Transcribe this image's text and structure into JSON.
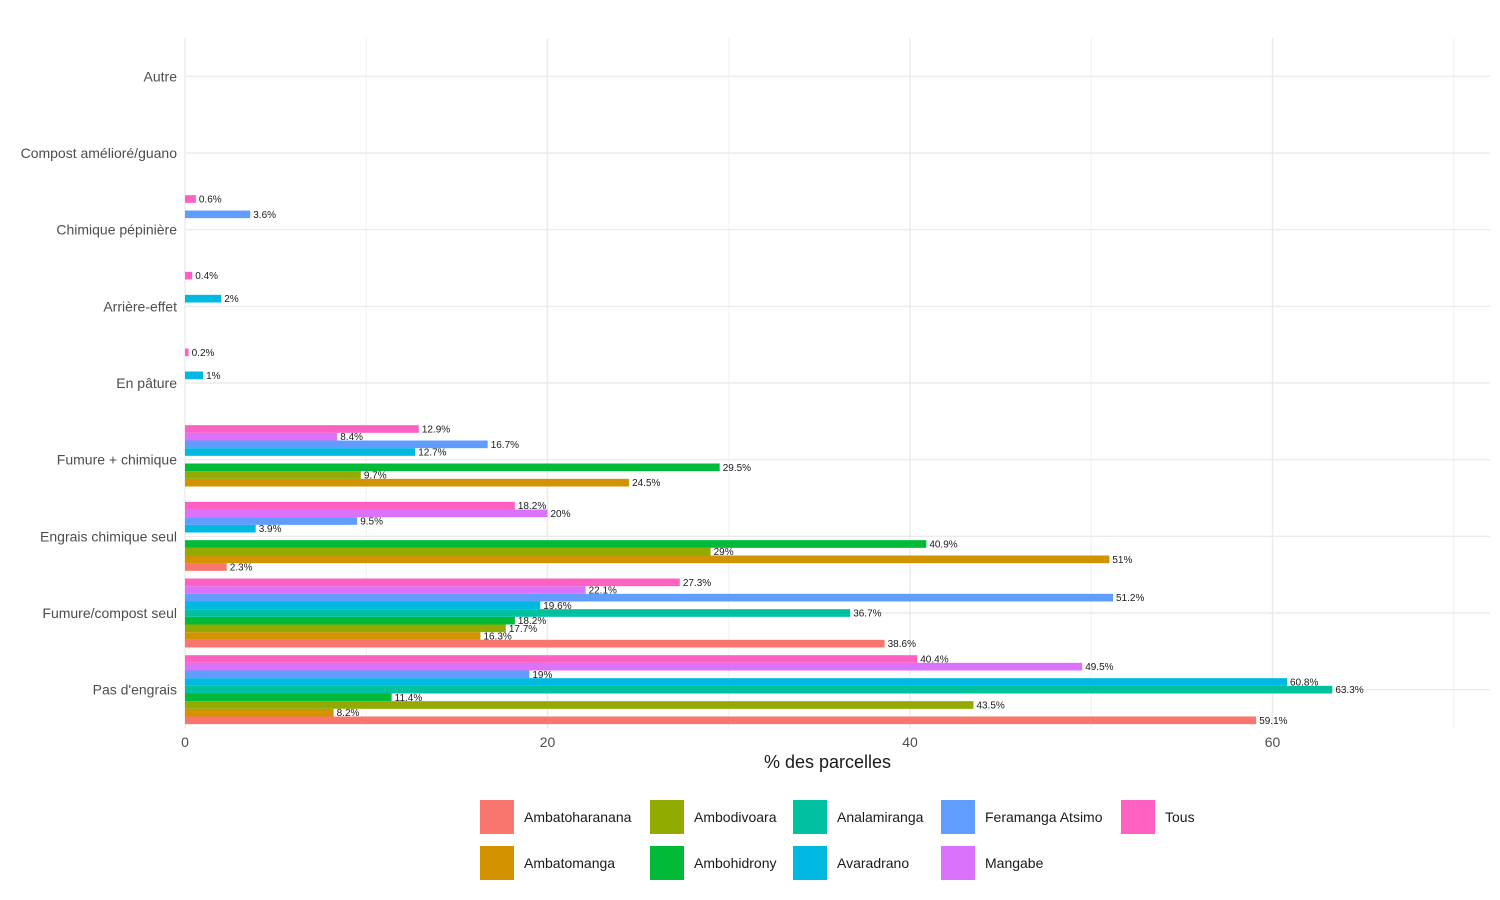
{
  "chart_data": {
    "type": "bar",
    "orientation": "horizontal",
    "xlabel": "% des parcelles",
    "ylabel": "",
    "xlim": [
      0,
      72
    ],
    "x_ticks": [
      0,
      20,
      40,
      60
    ],
    "grid": true,
    "legend_position": "bottom",
    "categories": [
      "Pas d'engrais",
      "Fumure/compost seul",
      "Engrais chimique seul",
      "Fumure + chimique",
      "En pâture",
      "Arrière-effet",
      "Chimique pépinière",
      "Compost amélioré/guano",
      "Autre"
    ],
    "series": [
      {
        "name": "Ambatoharanana",
        "color": "#F8766D",
        "values": [
          59.1,
          38.6,
          2.3,
          null,
          null,
          null,
          null,
          null,
          null
        ],
        "labels": [
          "59.1%",
          "38.6%",
          "2.3%",
          "",
          "",
          "",
          "",
          "",
          ""
        ]
      },
      {
        "name": "Ambatomanga",
        "color": "#D39200",
        "values": [
          8.2,
          16.3,
          51,
          24.5,
          null,
          null,
          null,
          null,
          null
        ],
        "labels": [
          "8.2%",
          "16.3%",
          "51%",
          "24.5%",
          "",
          "",
          "",
          "",
          ""
        ]
      },
      {
        "name": "Ambodivoara",
        "color": "#93AA00",
        "values": [
          43.5,
          17.7,
          29,
          9.7,
          null,
          null,
          null,
          null,
          null
        ],
        "labels": [
          "43.5%",
          "17.7%",
          "29%",
          "9.7%",
          "",
          "",
          "",
          "",
          ""
        ]
      },
      {
        "name": "Ambohidrony",
        "color": "#00BA38",
        "values": [
          11.4,
          18.2,
          40.9,
          29.5,
          null,
          null,
          null,
          null,
          null
        ],
        "labels": [
          "11.4%",
          "18.2%",
          "40.9%",
          "29.5%",
          "",
          "",
          "",
          "",
          ""
        ]
      },
      {
        "name": "Analamiranga",
        "color": "#00C19F",
        "values": [
          63.3,
          36.7,
          null,
          null,
          null,
          null,
          null,
          null,
          null
        ],
        "labels": [
          "63.3%",
          "36.7%",
          "",
          "",
          "",
          "",
          "",
          "",
          ""
        ]
      },
      {
        "name": "Avaradrano",
        "color": "#00B9E3",
        "values": [
          60.8,
          19.6,
          3.9,
          12.7,
          1,
          2,
          null,
          null,
          null
        ],
        "labels": [
          "60.8%",
          "19.6%",
          "3.9%",
          "12.7%",
          "1%",
          "2%",
          "",
          "",
          ""
        ]
      },
      {
        "name": "Feramanga Atsimo",
        "color": "#619CFF",
        "values": [
          19,
          51.2,
          9.5,
          16.7,
          null,
          null,
          3.6,
          null,
          null
        ],
        "labels": [
          "19%",
          "51.2%",
          "9.5%",
          "16.7%",
          "",
          "",
          "3.6%",
          "",
          ""
        ]
      },
      {
        "name": "Mangabe",
        "color": "#DB72FB",
        "values": [
          49.5,
          22.1,
          20,
          8.4,
          null,
          null,
          null,
          null,
          null
        ],
        "labels": [
          "49.5%",
          "22.1%",
          "20%",
          "8.4%",
          "",
          "",
          "",
          "",
          ""
        ]
      },
      {
        "name": "Tous",
        "color": "#FF61C3",
        "values": [
          40.4,
          27.3,
          18.2,
          12.9,
          0.2,
          0.4,
          0.6,
          null,
          null
        ],
        "labels": [
          "40.4%",
          "27.3%",
          "18.2%",
          "12.9%",
          "0.2%",
          "0.4%",
          "0.6%",
          "",
          ""
        ]
      }
    ],
    "legend": {
      "rows": [
        [
          "Ambatoharanana",
          "Ambodivoara",
          "Analamiranga",
          "Feramanga Atsimo",
          "Tous"
        ],
        [
          "Ambatomanga",
          "Ambohidrony",
          "Avaradrano",
          "Mangabe"
        ]
      ]
    }
  }
}
